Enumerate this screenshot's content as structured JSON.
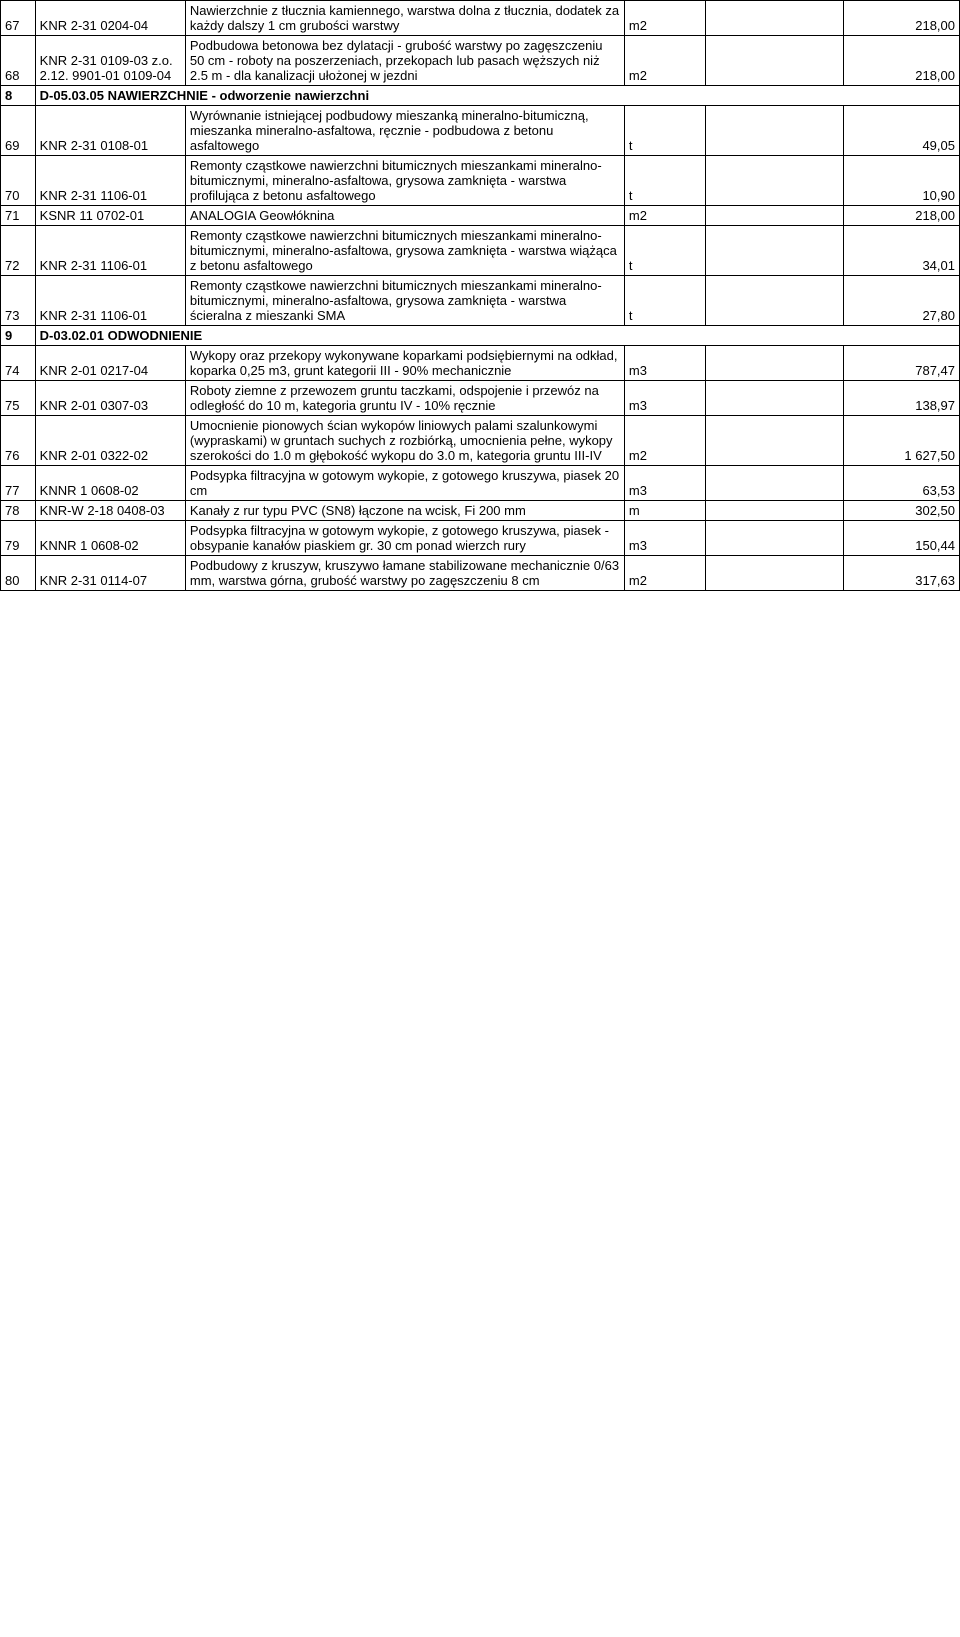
{
  "rows": [
    {
      "type": "data",
      "num": "67",
      "code": "KNR 2-31 0204-04",
      "desc": "Nawierzchnie z tłucznia kamiennego, warstwa dolna z tłucznia, dodatek za każdy dalszy 1 cm grubości warstwy",
      "unit": "m2",
      "val": "218,00"
    },
    {
      "type": "data",
      "num": "68",
      "code": "KNR 2-31 0109-03 z.o. 2.12. 9901-01 0109-04",
      "desc": "Podbudowa betonowa bez dylatacji - grubość warstwy po zagęszczeniu 50 cm - roboty na poszerzeniach, przekopach lub pasach węższych niż 2.5 m - dla kanalizacji ułożonej w jezdni",
      "unit": "m2",
      "val": "218,00"
    },
    {
      "type": "section",
      "num": "8",
      "label": "D-05.03.05   NAWIERZCHNIE - odworzenie nawierzchni"
    },
    {
      "type": "data",
      "num": "69",
      "code": "KNR 2-31 0108-01",
      "desc": "Wyrównanie istniejącej podbudowy mieszanką mineralno-bitumiczną, mieszanka mineralno-asfaltowa, ręcznie - podbudowa z betonu asfaltowego",
      "unit": "t",
      "val": "49,05"
    },
    {
      "type": "data",
      "num": "70",
      "code": "KNR 2-31 1106-01",
      "desc": "Remonty cząstkowe nawierzchni bitumicznych mieszankami mineralno-bitumicznymi, mineralno-asfaltowa, grysowa zamknięta - warstwa profilująca z betonu asfaltowego",
      "unit": "t",
      "val": "10,90"
    },
    {
      "type": "data",
      "num": "71",
      "code": "KSNR 11 0702-01",
      "desc": "ANALOGIA  Geowłóknina",
      "unit": "m2",
      "val": "218,00"
    },
    {
      "type": "data",
      "num": "72",
      "code": "KNR 2-31 1106-01",
      "desc": "Remonty cząstkowe nawierzchni bitumicznych mieszankami mineralno-bitumicznymi, mineralno-asfaltowa, grysowa zamknięta - warstwa wiążąca z betonu asfaltowego",
      "unit": "t",
      "val": "34,01"
    },
    {
      "type": "data",
      "num": "73",
      "code": "KNR 2-31 1106-01",
      "desc": "Remonty cząstkowe nawierzchni bitumicznych mieszankami mineralno-bitumicznymi, mineralno-asfaltowa, grysowa zamknięta - warstwa ścieralna z mieszanki SMA",
      "unit": "t",
      "val": "27,80"
    },
    {
      "type": "section",
      "num": "9",
      "label": "D-03.02.01   ODWODNIENIE"
    },
    {
      "type": "data",
      "num": "74",
      "code": "KNR 2-01 0217-04",
      "desc": "Wykopy oraz przekopy wykonywane koparkami podsiębiernymi na odkład, koparka 0,25 m3, grunt kategorii III - 90% mechanicznie",
      "unit": "m3",
      "val": "787,47"
    },
    {
      "type": "data",
      "num": "75",
      "code": "KNR 2-01 0307-03",
      "desc": "Roboty ziemne z przewozem gruntu taczkami, odspojenie i przewóz na odległość do 10 m, kategoria gruntu IV - 10% ręcznie",
      "unit": "m3",
      "val": "138,97"
    },
    {
      "type": "data",
      "num": "76",
      "code": "KNR 2-01 0322-02",
      "desc": "Umocnienie pionowych ścian wykopów liniowych palami szalunkowymi (wypraskami) w gruntach suchych z rozbiórką, umocnienia pełne, wykopy szerokości do 1.0 m głębokość wykopu do 3.0 m, kategoria gruntu III-IV",
      "unit": "m2",
      "val": "1 627,50"
    },
    {
      "type": "data",
      "num": "77",
      "code": "KNNR 1 0608-02",
      "desc": "Podsypka filtracyjna w gotowym wykopie, z gotowego kruszywa, piasek 20 cm",
      "unit": "m3",
      "val": "63,53"
    },
    {
      "type": "data",
      "num": "78",
      "code": "KNR-W 2-18 0408-03",
      "desc": "Kanały z rur typu PVC (SN8) łączone na wcisk, Fi 200 mm",
      "unit": "m",
      "val": "302,50"
    },
    {
      "type": "data",
      "num": "79",
      "code": "KNNR 1 0608-02",
      "desc": "Podsypka filtracyjna w gotowym wykopie, z gotowego kruszywa, piasek - obsypanie kanałów piaskiem gr. 30 cm ponad wierzch rury",
      "unit": "m3",
      "val": "150,44"
    },
    {
      "type": "data",
      "num": "80",
      "code": "KNR 2-31 0114-07",
      "desc": "Podbudowy z kruszyw, kruszywo łamane stabilizowane mechanicznie 0/63 mm, warstwa górna, grubość warstwy po zagęszczeniu 8 cm",
      "unit": "m2",
      "val": "317,63"
    }
  ]
}
